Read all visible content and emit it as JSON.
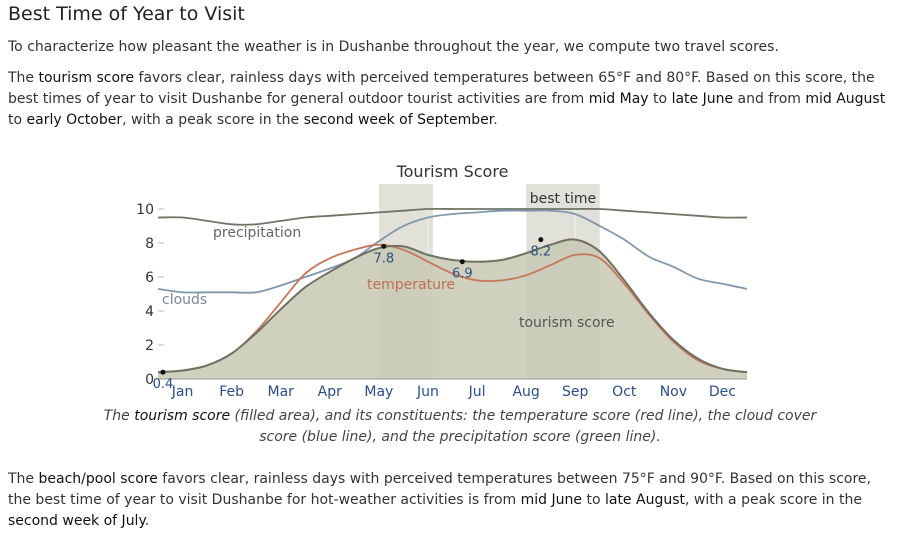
{
  "heading": "Best Time of Year to Visit",
  "intro": "To characterize how pleasant the weather is in Dushanbe throughout the year, we compute two travel scores.",
  "tourism": {
    "p1": "The ",
    "term": "tourism score",
    "p2": " favors clear, rainless days with perceived temperatures between 65°F and 80°F. Based on this score, the best times of year to visit Dushanbe for general outdoor tourist activities are from ",
    "r1a": "mid May",
    "to1": " to ",
    "r1b": "late June",
    "and": " and from ",
    "r2a": "mid August",
    "to2": " to ",
    "r2b": "early October",
    "p3": ", with a peak score in the ",
    "peak": "second week of September",
    "end": "."
  },
  "caption": {
    "c1": "The ",
    "term": "tourism score",
    "c2": " (filled area), and its constituents: the temperature score (red line), the cloud cover score (blue line), and the precipitation score (green line)."
  },
  "beach": {
    "p1": "The ",
    "term": "beach/pool score",
    "p2": " favors clear, rainless days with perceived temperatures between 75°F and 90°F. Based on this score, the best time of year to visit Dushanbe for hot-weather activities is from ",
    "ra": "mid June",
    "to": " to ",
    "rb": "late August",
    "p3": ", with a peak score in the ",
    "peak": "second week of July",
    "end": "."
  },
  "colors": {
    "fill": "#c8c8b4",
    "fill_line": "#6e7260",
    "temperature": "#c8765a",
    "clouds": "#7f97ad",
    "precipitation": "#6f7466",
    "best_band": "#d9d9cf",
    "month_label": "#2a4e85",
    "value_label": "#2a4e85"
  },
  "chart_data": {
    "type": "area",
    "title": "Tourism Score",
    "ylim": [
      0,
      10
    ],
    "yticks": [
      "0",
      "2",
      "4",
      "6",
      "8",
      "10"
    ],
    "months": [
      "Jan",
      "Feb",
      "Mar",
      "Apr",
      "May",
      "Jun",
      "Jul",
      "Aug",
      "Sep",
      "Oct",
      "Nov",
      "Dec"
    ],
    "best_time_label": "best time",
    "best_time_ranges": [
      [
        4.5,
        5.6
      ],
      [
        7.5,
        9.0
      ]
    ],
    "series": [
      {
        "name": "tourism score",
        "x": [
          0,
          0.5,
          1,
          1.5,
          2,
          2.5,
          3,
          3.5,
          4,
          4.5,
          5,
          5.5,
          6,
          6.5,
          7,
          7.5,
          8,
          8.5,
          9,
          9.5,
          10,
          10.5,
          11,
          11.5,
          12
        ],
        "values": [
          0.4,
          0.5,
          0.8,
          1.5,
          2.7,
          4.1,
          5.4,
          6.3,
          7.1,
          7.7,
          7.8,
          7.3,
          7.0,
          6.9,
          7.0,
          7.4,
          7.9,
          8.2,
          7.5,
          5.8,
          3.9,
          2.3,
          1.2,
          0.6,
          0.4
        ]
      },
      {
        "name": "temperature",
        "x": [
          0,
          0.5,
          1,
          1.5,
          2,
          2.5,
          3,
          3.5,
          4,
          4.5,
          5,
          5.5,
          6,
          6.5,
          7,
          7.5,
          8,
          8.5,
          9,
          9.5,
          10,
          10.5,
          11,
          11.5,
          12
        ],
        "values": [
          0.4,
          0.5,
          0.8,
          1.5,
          2.8,
          4.5,
          6.2,
          7.1,
          7.6,
          7.9,
          7.6,
          6.9,
          6.2,
          5.8,
          5.8,
          6.1,
          6.7,
          7.3,
          7.1,
          5.6,
          3.8,
          2.2,
          1.1,
          0.6,
          0.4
        ]
      },
      {
        "name": "clouds",
        "x": [
          0,
          0.5,
          1,
          1.5,
          2,
          2.5,
          3,
          3.5,
          4,
          4.5,
          5,
          5.5,
          6,
          6.5,
          7,
          7.5,
          8,
          8.5,
          9,
          9.5,
          10,
          10.5,
          11,
          11.5,
          12
        ],
        "values": [
          5.3,
          5.1,
          5.1,
          5.1,
          5.1,
          5.5,
          6.0,
          6.5,
          7.1,
          8.1,
          9.0,
          9.5,
          9.7,
          9.8,
          9.9,
          9.9,
          9.9,
          9.7,
          9.0,
          8.2,
          7.2,
          6.6,
          5.9,
          5.6,
          5.3
        ]
      },
      {
        "name": "precipitation",
        "x": [
          0,
          0.5,
          1,
          1.5,
          2,
          2.5,
          3,
          3.5,
          4,
          4.5,
          5,
          5.5,
          6,
          6.5,
          7,
          7.5,
          8,
          8.5,
          9,
          9.5,
          10,
          10.5,
          11,
          11.5,
          12
        ],
        "values": [
          9.5,
          9.5,
          9.3,
          9.1,
          9.1,
          9.3,
          9.5,
          9.6,
          9.7,
          9.8,
          9.9,
          10,
          10,
          10,
          10,
          10,
          10,
          10,
          10,
          9.9,
          9.8,
          9.7,
          9.6,
          9.5,
          9.5
        ]
      }
    ],
    "annotations": [
      {
        "x": 0.1,
        "y": 0.4,
        "label": "0.4"
      },
      {
        "x": 4.6,
        "y": 7.8,
        "label": "7.8"
      },
      {
        "x": 6.2,
        "y": 6.9,
        "label": "6.9"
      },
      {
        "x": 7.8,
        "y": 8.2,
        "label": "8.2"
      }
    ],
    "series_labels": {
      "precipitation": "precipitation",
      "clouds": "clouds",
      "temperature": "temperature",
      "tourism": "tourism score"
    }
  }
}
